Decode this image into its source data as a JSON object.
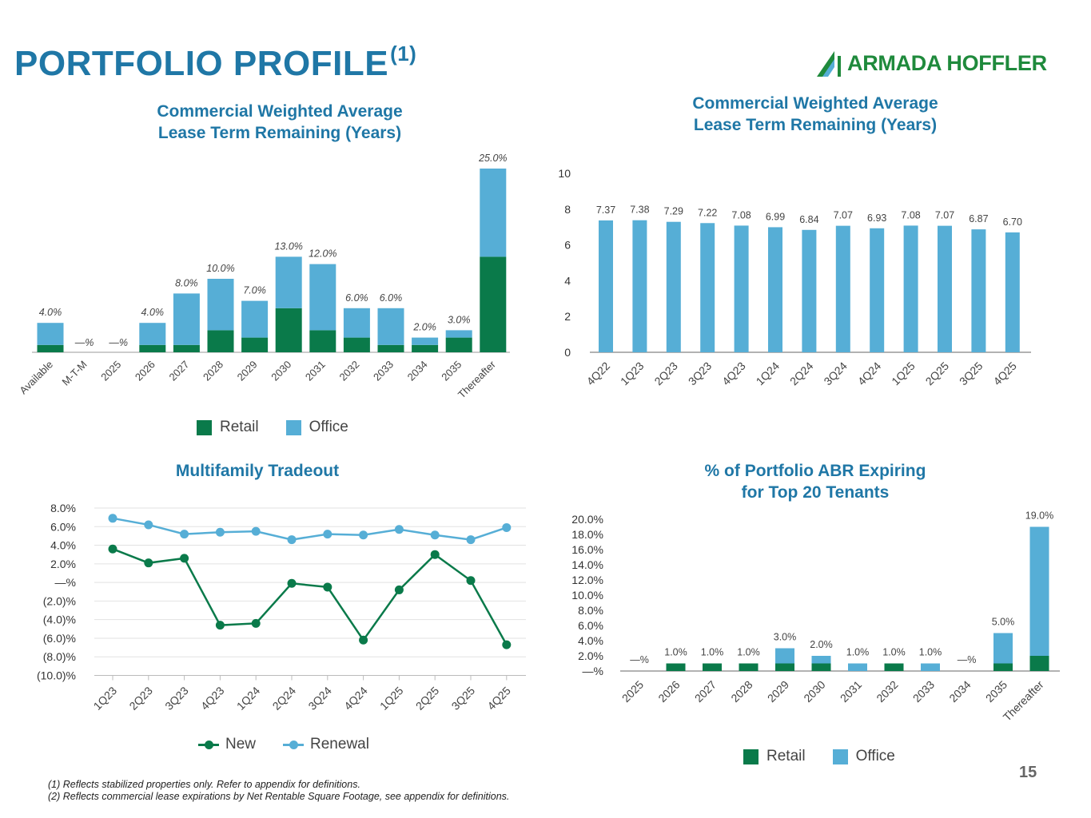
{
  "page": {
    "title": "PORTFOLIO PROFILE",
    "title_sup": "(1)",
    "logo_text": "ARMADA HOFFLER",
    "page_number": "15",
    "footnotes": [
      "(1)   Reflects stabilized properties only. Refer to appendix for definitions.",
      "(2)  Reflects commercial lease expirations by Net Rentable Square Footage, see appendix for definitions."
    ]
  },
  "colors": {
    "title": "#1f77a6",
    "retail": "#0a7a4a",
    "office": "#56aed6",
    "new": "#0a7a4a",
    "renewal": "#56aed6",
    "logo": "#1f8a3c"
  },
  "chart_data": [
    {
      "type": "bar",
      "stacked": true,
      "title": "Commercial Weighted Average Lease Term Remaining (Years)",
      "title_lines": [
        "Commercial Weighted Average",
        "Lease Term Remaining (Years)"
      ],
      "categories": [
        "Available",
        "M-T-M",
        "2025",
        "2026",
        "2027",
        "2028",
        "2029",
        "2030",
        "2031",
        "2032",
        "2033",
        "2034",
        "2035",
        "Thereafter"
      ],
      "series": [
        {
          "name": "Retail",
          "values": [
            1.0,
            0,
            0,
            1.0,
            1.0,
            3.0,
            2.0,
            6.0,
            3.0,
            2.0,
            1.0,
            1.0,
            2.0,
            13.0
          ]
        },
        {
          "name": "Office",
          "values": [
            3.0,
            0,
            0,
            3.0,
            7.0,
            7.0,
            5.0,
            7.0,
            9.0,
            4.0,
            5.0,
            1.0,
            1.0,
            12.0
          ]
        }
      ],
      "data_labels": [
        "4.0%",
        "—%",
        "—%",
        "4.0%",
        "8.0%",
        "10.0%",
        "7.0%",
        "13.0%",
        "12.0%",
        "6.0%",
        "6.0%",
        "2.0%",
        "3.0%",
        "25.0%"
      ],
      "ylim": [
        0,
        25
      ],
      "legend": [
        "Retail",
        "Office"
      ]
    },
    {
      "type": "bar",
      "title": "Commercial Weighted Average Lease Term Remaining (Years)",
      "title_lines": [
        "Commercial Weighted Average",
        "Lease Term Remaining (Years)"
      ],
      "categories": [
        "4Q22",
        "1Q23",
        "2Q23",
        "3Q23",
        "4Q23",
        "1Q24",
        "2Q24",
        "3Q24",
        "4Q24",
        "1Q25",
        "2Q25",
        "3Q25",
        "4Q25"
      ],
      "values": [
        7.37,
        7.38,
        7.29,
        7.22,
        7.08,
        6.99,
        6.84,
        7.07,
        6.93,
        7.08,
        7.07,
        6.87,
        6.7
      ],
      "data_labels": [
        "7.37",
        "7.38",
        "7.29",
        "7.22",
        "7.08",
        "6.99",
        "6.84",
        "7.07",
        "6.93",
        "7.08",
        "7.07",
        "6.87",
        "6.70"
      ],
      "yticks": [
        "0",
        "2",
        "4",
        "6",
        "8",
        "10"
      ],
      "ylim": [
        0,
        10
      ]
    },
    {
      "type": "line",
      "title": "Multifamily Tradeout",
      "categories": [
        "1Q23",
        "2Q23",
        "3Q23",
        "4Q23",
        "1Q24",
        "2Q24",
        "3Q24",
        "4Q24",
        "1Q25",
        "2Q25",
        "3Q25",
        "4Q25"
      ],
      "series": [
        {
          "name": "New",
          "values": [
            3.6,
            2.1,
            2.6,
            -4.6,
            -4.4,
            -0.1,
            -0.5,
            -6.2,
            -0.8,
            3.0,
            0.2,
            -6.7
          ]
        },
        {
          "name": "Renewal",
          "values": [
            6.9,
            6.2,
            5.2,
            5.4,
            5.5,
            4.6,
            5.2,
            5.1,
            5.7,
            5.1,
            4.6,
            5.9
          ]
        }
      ],
      "yticks": [
        "8.0%",
        "6.0%",
        "4.0%",
        "2.0%",
        "—%",
        "(2.0)%",
        "(4.0)%",
        "(6.0)%",
        "(8.0)%",
        "(10.0)%"
      ],
      "ylim": [
        -10,
        8
      ],
      "legend": [
        "New",
        "Renewal"
      ]
    },
    {
      "type": "bar",
      "stacked": true,
      "title": "% of Portfolio ABR Expiring for Top 20 Tenants",
      "title_lines": [
        "% of Portfolio ABR Expiring",
        "for Top 20 Tenants"
      ],
      "categories": [
        "2025",
        "2026",
        "2027",
        "2028",
        "2029",
        "2030",
        "2031",
        "2032",
        "2033",
        "2034",
        "2035",
        "Thereafter"
      ],
      "series": [
        {
          "name": "Retail",
          "values": [
            0,
            1.0,
            1.0,
            1.0,
            1.0,
            1.0,
            0,
            1.0,
            0,
            0,
            1.0,
            2.0
          ]
        },
        {
          "name": "Office",
          "values": [
            0,
            0,
            0,
            0,
            2.0,
            1.0,
            1.0,
            0,
            1.0,
            0,
            4.0,
            17.0
          ]
        }
      ],
      "data_labels": [
        "—%",
        "1.0%",
        "1.0%",
        "1.0%",
        "3.0%",
        "2.0%",
        "1.0%",
        "1.0%",
        "1.0%",
        "—%",
        "5.0%",
        "19.0%"
      ],
      "yticks": [
        "20.0%",
        "18.0%",
        "16.0%",
        "14.0%",
        "12.0%",
        "10.0%",
        "8.0%",
        "6.0%",
        "4.0%",
        "2.0%",
        "—%"
      ],
      "ylim": [
        0,
        20
      ],
      "legend": [
        "Retail",
        "Office"
      ]
    }
  ]
}
